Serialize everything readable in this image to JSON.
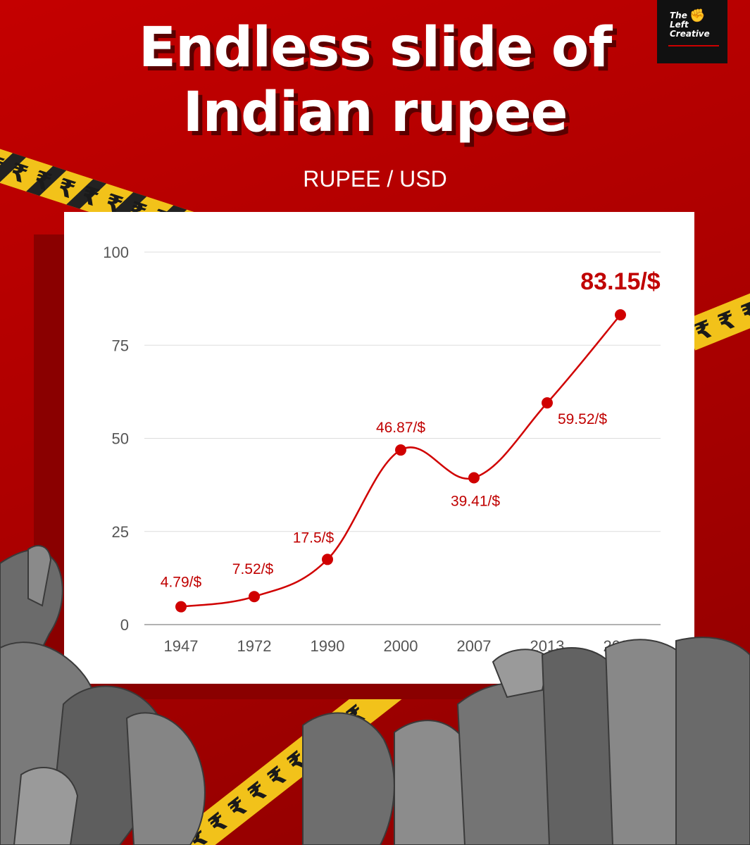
{
  "brand": {
    "logo_text_line1": "The",
    "logo_text_line2": "Left",
    "logo_text_line3": "Creative"
  },
  "title_line1": "Endless slide of",
  "title_line2": "Indian rupee",
  "subtitle": "RUPEE / USD",
  "colors": {
    "background": "#b30000",
    "line": "#d00000",
    "label": "#c00000",
    "card": "#ffffff",
    "tape": "#f2c21a"
  },
  "chart_data": {
    "type": "line",
    "title": "",
    "xlabel": "",
    "ylabel": "",
    "categories": [
      "1947",
      "1972",
      "1990",
      "2000",
      "2007",
      "2013",
      "2023"
    ],
    "values": [
      4.79,
      7.52,
      17.5,
      46.87,
      39.41,
      59.52,
      83.15
    ],
    "data_labels": [
      "4.79/$",
      "7.52/$",
      "17.5/$",
      "46.87/$",
      "39.41/$",
      "59.52/$",
      "83.15/$"
    ],
    "ylim": [
      0,
      100
    ],
    "yticks": [
      0,
      25,
      50,
      75,
      100
    ],
    "grid": true,
    "legend": "none"
  }
}
